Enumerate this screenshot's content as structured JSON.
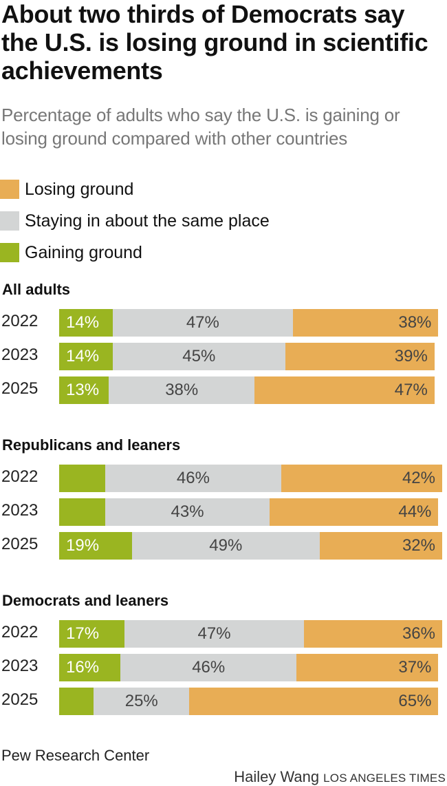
{
  "header": {
    "title": "About two thirds of Democrats say the U.S. is losing ground in scientific achievements",
    "subtitle": "Percentage of adults who say the U.S. is gaining or losing ground compared with other countries"
  },
  "colors": {
    "losing": "#e8ad55",
    "same": "#d3d5d5",
    "gaining": "#9ab521"
  },
  "legend": [
    {
      "key": "losing",
      "label": "Losing ground"
    },
    {
      "key": "same",
      "label": "Staying in about the same place"
    },
    {
      "key": "gaining",
      "label": "Gaining ground"
    }
  ],
  "footer": {
    "source": "Pew Research Center",
    "author": "Hailey Wang",
    "organization": "LOS ANGELES TIMES"
  },
  "chart_data": {
    "type": "bar",
    "orientation": "horizontal",
    "stacked": true,
    "title": "About two thirds of Democrats say the U.S. is losing ground in scientific achievements",
    "subtitle": "Percentage of adults who say the U.S. is gaining or losing ground compared with other countries",
    "xlabel": "",
    "ylabel": "",
    "xlim": [
      0,
      100
    ],
    "legend_position": "top-left",
    "series_order": [
      "Gaining ground",
      "Staying in about the same place",
      "Losing ground"
    ],
    "groups": [
      {
        "name": "All adults",
        "categories": [
          "2022",
          "2023",
          "2025"
        ],
        "series": [
          {
            "name": "Gaining ground",
            "values": [
              14,
              14,
              13
            ],
            "labels": [
              "14%",
              "14%",
              "13%"
            ]
          },
          {
            "name": "Staying in about the same place",
            "values": [
              47,
              45,
              38
            ],
            "labels": [
              "47%",
              "45%",
              "38%"
            ]
          },
          {
            "name": "Losing ground",
            "values": [
              38,
              39,
              47
            ],
            "labels": [
              "38%",
              "39%",
              "47%"
            ]
          }
        ]
      },
      {
        "name": "Republicans and leaners",
        "categories": [
          "2022",
          "2023",
          "2025"
        ],
        "series": [
          {
            "name": "Gaining ground",
            "values": [
              12,
              12,
              19
            ],
            "labels": [
              "",
              "",
              "19%"
            ]
          },
          {
            "name": "Staying in about the same place",
            "values": [
              46,
              43,
              49
            ],
            "labels": [
              "46%",
              "43%",
              "49%"
            ]
          },
          {
            "name": "Losing ground",
            "values": [
              42,
              44,
              32
            ],
            "labels": [
              "42%",
              "44%",
              "32%"
            ]
          }
        ]
      },
      {
        "name": "Democrats and leaners",
        "categories": [
          "2022",
          "2023",
          "2025"
        ],
        "series": [
          {
            "name": "Gaining ground",
            "values": [
              17,
              16,
              9
            ],
            "labels": [
              "17%",
              "16%",
              ""
            ]
          },
          {
            "name": "Staying in about the same place",
            "values": [
              47,
              46,
              25
            ],
            "labels": [
              "47%",
              "46%",
              "25%"
            ]
          },
          {
            "name": "Losing ground",
            "values": [
              36,
              37,
              65
            ],
            "labels": [
              "36%",
              "37%",
              "65%"
            ]
          }
        ]
      }
    ]
  }
}
